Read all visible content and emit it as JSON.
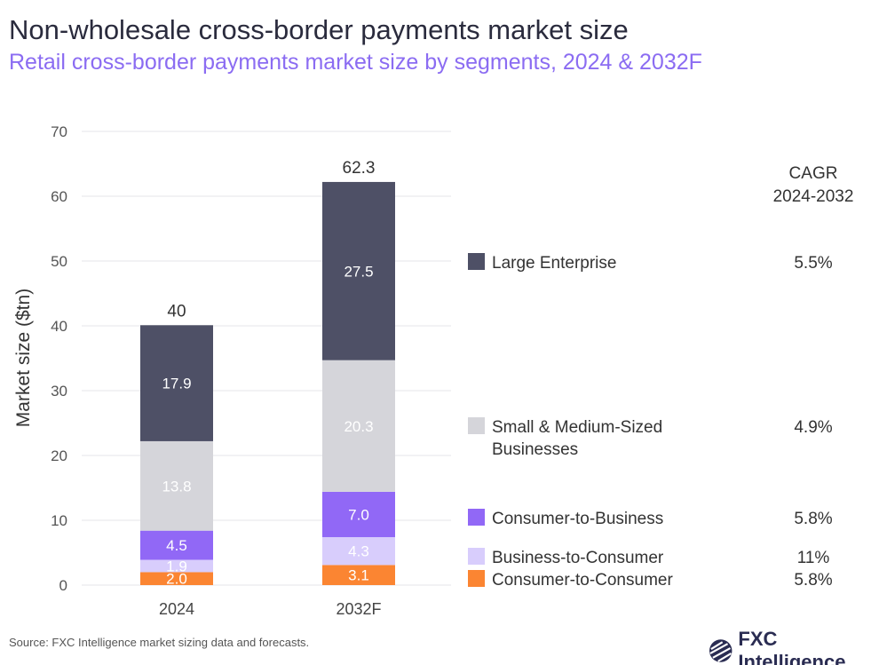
{
  "title": "Non-wholesale cross-border payments market size",
  "subtitle": "Retail cross-border payments market size by segments, 2024 & 2032F",
  "source": "Source: FXC Intelligence market sizing data and forecasts.",
  "logo_text": "FXC Intelligence",
  "cagr_header": [
    "CAGR",
    "2024-2032"
  ],
  "chart_data": {
    "type": "bar",
    "stacked": true,
    "categories": [
      "2024",
      "2032F"
    ],
    "ylabel": "Market size ($tn)",
    "ylim": [
      0,
      70
    ],
    "yticks": [
      0,
      10,
      20,
      30,
      40,
      50,
      60,
      70
    ],
    "grid": true,
    "totals": [
      "40",
      "62.3"
    ],
    "series": [
      {
        "name": "Consumer-to-Consumer",
        "values": [
          2.0,
          3.1
        ],
        "labels": [
          "2.0",
          "3.1"
        ],
        "color": "#fb8532",
        "cagr": "5.8%"
      },
      {
        "name": "Business-to-Consumer",
        "values": [
          1.9,
          4.3
        ],
        "labels": [
          "1.9",
          "4.3"
        ],
        "color": "#d8cdfc",
        "cagr": "11%"
      },
      {
        "name": "Consumer-to-Business",
        "values": [
          4.5,
          7.0
        ],
        "labels": [
          "4.5",
          "7.0"
        ],
        "color": "#9168f6",
        "cagr": "5.8%"
      },
      {
        "name": "Small & Medium-Sized Businesses",
        "values": [
          13.8,
          20.3
        ],
        "labels": [
          "13.8",
          "20.3"
        ],
        "color": "#d5d5da",
        "cagr": "4.9%"
      },
      {
        "name": "Large Enterprise",
        "values": [
          17.9,
          27.5
        ],
        "labels": [
          "17.9",
          "27.5"
        ],
        "color": "#4e5066",
        "cagr": "5.5%"
      }
    ]
  }
}
